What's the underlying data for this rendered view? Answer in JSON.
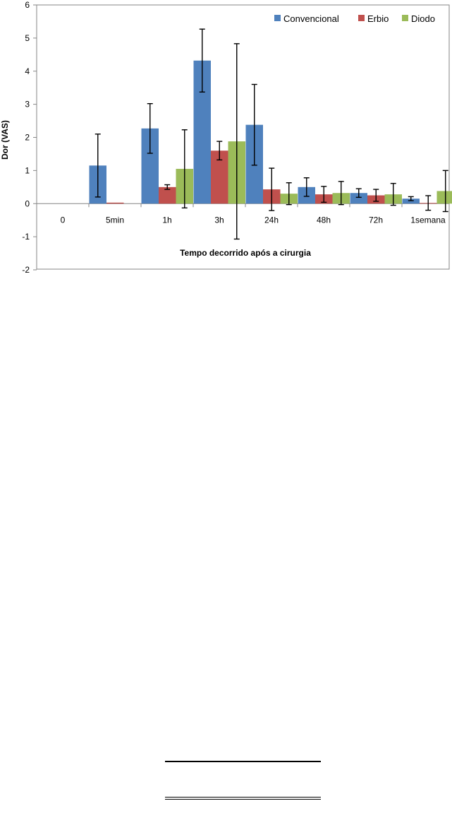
{
  "chart_data": {
    "type": "bar",
    "xlabel": "Tempo decorrido após a cirurgia",
    "ylabel": "Dor (VAS)",
    "ylim": [
      -2,
      6
    ],
    "yticks": [
      -2,
      -1,
      0,
      1,
      2,
      3,
      4,
      5,
      6
    ],
    "categories": [
      "0",
      "5min",
      "1h",
      "3h",
      "24h",
      "48h",
      "72h",
      "1semana"
    ],
    "legend_position": "top-right",
    "grid": false,
    "series": [
      {
        "name": "Convencional",
        "color": "#4F81BD",
        "values": [
          0,
          1.15,
          2.27,
          4.32,
          2.38,
          0.5,
          0.32,
          0.15
        ],
        "errors": [
          0,
          0.95,
          0.75,
          0.95,
          1.22,
          0.28,
          0.13,
          0.06
        ]
      },
      {
        "name": "Erbio",
        "color": "#C0504D",
        "values": [
          0,
          0.03,
          0.5,
          1.6,
          0.43,
          0.28,
          0.25,
          0.02
        ],
        "errors": [
          0,
          0,
          0.07,
          0.28,
          0.64,
          0.24,
          0.18,
          0.22
        ]
      },
      {
        "name": "Diodo",
        "color": "#9BBB59",
        "values": [
          0,
          0,
          1.05,
          1.88,
          0.3,
          0.32,
          0.28,
          0.38
        ],
        "errors": [
          0,
          0,
          1.18,
          2.95,
          0.33,
          0.35,
          0.33,
          0.62
        ]
      }
    ]
  }
}
